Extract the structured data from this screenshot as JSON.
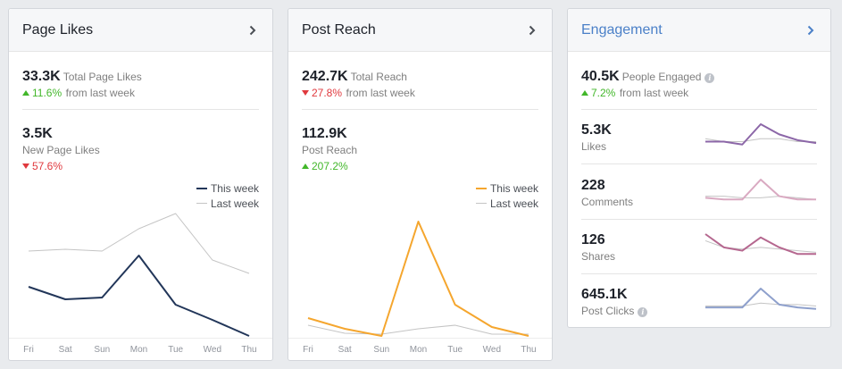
{
  "page_likes": {
    "title": "Page Likes",
    "total_value": "33.3K",
    "total_label": "Total Page Likes",
    "total_change": "11.6%",
    "total_change_suffix": "from last week",
    "new_value": "3.5K",
    "new_label": "New Page Likes",
    "new_change": "57.6%"
  },
  "post_reach": {
    "title": "Post Reach",
    "total_value": "242.7K",
    "total_label": "Total Reach",
    "total_change": "27.8%",
    "total_change_suffix": "from last week",
    "reach_value": "112.9K",
    "reach_label": "Post Reach",
    "reach_change": "207.2%"
  },
  "engagement": {
    "title": "Engagement",
    "total_value": "40.5K",
    "total_label": "People Engaged",
    "total_change": "7.2%",
    "total_change_suffix": "from last week",
    "rows": [
      {
        "value": "5.3K",
        "label": "Likes",
        "color": "#8c67a8",
        "this_week": [
          4,
          4,
          2,
          16,
          9,
          5,
          3
        ],
        "last_week": [
          6,
          4,
          4,
          6,
          6,
          4,
          4
        ]
      },
      {
        "value": "228",
        "label": "Comments",
        "color": "#d9a9c1",
        "this_week": [
          3,
          2,
          2,
          14,
          4,
          2,
          2
        ],
        "last_week": [
          4,
          4,
          3,
          3,
          4,
          3,
          2
        ]
      },
      {
        "value": "126",
        "label": "Shares",
        "color": "#b5678f",
        "this_week": [
          14,
          6,
          4,
          12,
          6,
          2,
          2
        ],
        "last_week": [
          10,
          6,
          5,
          6,
          5,
          4,
          3
        ]
      },
      {
        "value": "645.1K",
        "label": "Post Clicks",
        "color": "#8ea0cc",
        "this_week": [
          3,
          3,
          3,
          16,
          5,
          3,
          2
        ],
        "last_week": [
          4,
          4,
          4,
          6,
          5,
          5,
          4
        ]
      }
    ]
  },
  "legend": {
    "this_week": "This week",
    "last_week": "Last week"
  },
  "colors": {
    "page_likes_this": "#223659",
    "post_reach_this": "#f5a62e",
    "last_week": "#c4c4c4",
    "up": "#42b72a",
    "down": "#e0393e",
    "link": "#4b80c8"
  },
  "icons": {
    "chevron": "chevron-right-icon",
    "info": "info-icon",
    "up": "triangle-up-icon",
    "down": "triangle-down-icon"
  },
  "chart_data": [
    {
      "type": "line",
      "categories": [
        "Fri",
        "Sat",
        "Sun",
        "Mon",
        "Tue",
        "Wed",
        "Thu"
      ],
      "series": [
        {
          "name": "This week",
          "values": [
            55,
            41,
            43,
            90,
            35,
            18,
            0
          ]
        },
        {
          "name": "Last week",
          "values": [
            95,
            97,
            95,
            120,
            137,
            85,
            70
          ]
        }
      ],
      "ylim": [
        0,
        160
      ]
    },
    {
      "type": "line",
      "categories": [
        "Fri",
        "Sat",
        "Sun",
        "Mon",
        "Tue",
        "Wed",
        "Thu"
      ],
      "series": [
        {
          "name": "This week",
          "values": [
            20,
            8,
            0,
            128,
            35,
            10,
            0
          ]
        },
        {
          "name": "Last week",
          "values": [
            12,
            3,
            2,
            8,
            12,
            2,
            2
          ]
        }
      ],
      "ylim": [
        0,
        160
      ]
    }
  ]
}
